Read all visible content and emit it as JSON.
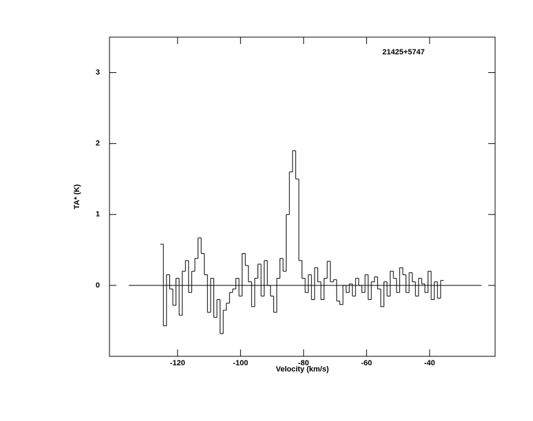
{
  "chart_data": {
    "type": "step",
    "title": "21425+5747",
    "xlabel": "Velocity (km/s)",
    "ylabel": "TA* (K)",
    "x": [
      -125,
      -124,
      -123,
      -122,
      -121,
      -120,
      -119,
      -118,
      -117,
      -116,
      -115,
      -114,
      -113,
      -112,
      -111,
      -110,
      -109,
      -108,
      -107,
      -106,
      -105,
      -104,
      -103,
      -102,
      -101,
      -100,
      -99,
      -98,
      -97,
      -96,
      -95,
      -94,
      -93,
      -92,
      -91,
      -90,
      -89,
      -88,
      -87,
      -86,
      -85,
      -84,
      -83,
      -82,
      -81,
      -80,
      -79,
      -78,
      -77,
      -76,
      -75,
      -74,
      -73,
      -72,
      -71,
      -70,
      -69,
      -68,
      -67,
      -66,
      -65,
      -64,
      -63,
      -62,
      -61,
      -60,
      -59,
      -58,
      -57,
      -56,
      -55,
      -54,
      -53,
      -52,
      -51,
      -50,
      -49,
      -48,
      -47,
      -46,
      -45,
      -44,
      -43,
      -42,
      -41,
      -40,
      -39,
      -38,
      -37,
      -36
    ],
    "values": [
      0.58,
      -0.57,
      0.15,
      -0.05,
      -0.28,
      0.1,
      -0.42,
      0.2,
      0.35,
      -0.1,
      0.2,
      0.38,
      0.67,
      0.45,
      0.15,
      -0.38,
      0.1,
      -0.45,
      -0.2,
      -0.68,
      -0.35,
      -0.25,
      -0.1,
      -0.05,
      0.1,
      -0.15,
      0.45,
      0.28,
      0.05,
      -0.3,
      0.1,
      0.3,
      -0.15,
      0.35,
      0.0,
      -0.15,
      -0.38,
      0.1,
      0.38,
      0.2,
      1.0,
      1.6,
      1.9,
      1.5,
      0.35,
      0.1,
      -0.1,
      0.15,
      -0.2,
      0.25,
      0.05,
      -0.2,
      0.1,
      0.34,
      0.05,
      0.08,
      -0.22,
      -0.27,
      0.0,
      -0.1,
      0.02,
      -0.15,
      0.1,
      0.0,
      -0.1,
      0.15,
      -0.2,
      0.05,
      0.12,
      -0.05,
      -0.3,
      0.05,
      -0.15,
      0.2,
      0.1,
      -0.1,
      0.25,
      0.15,
      -0.1,
      0.18,
      0.05,
      -0.15,
      0.1,
      0.02,
      -0.1,
      0.2,
      -0.2,
      0.05,
      -0.18,
      0.07
    ],
    "color": "#000000",
    "hline": {
      "y": 0,
      "x": [
        -135.5,
        -23.5
      ]
    },
    "xlim": [
      -141.6,
      -19.2
    ],
    "ylim": [
      -1,
      3.5
    ],
    "xticks": [
      -120,
      -100,
      -80,
      -60,
      -40
    ],
    "yticks": [
      0,
      1,
      2,
      3
    ]
  }
}
